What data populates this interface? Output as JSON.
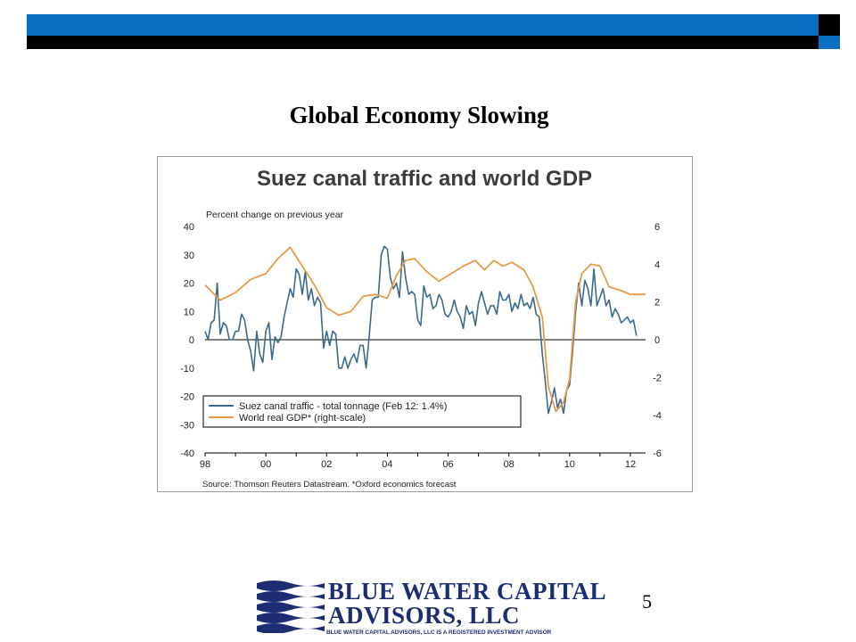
{
  "slide": {
    "title": "Global Economy Slowing",
    "page_number": "5"
  },
  "logo": {
    "line1": "BLUE WATER CAPITAL",
    "line2": "ADVISORS, LLC",
    "tagline": "BLUE WATER CAPITAL ADVISORS, LLC IS A REGISTERED INVESTMENT ADVISOR",
    "color": "#1d2d72"
  },
  "colors": {
    "top_bar": "#0b6fc1",
    "traffic_series": "#3d6a8a",
    "gdp_series": "#e89a45"
  },
  "chart_data": {
    "type": "line",
    "title": "Suez canal traffic and world GDP",
    "subtitle": "Percent change on previous year",
    "source": "Source: Thomson Reuters Datastream. *Oxford economics forecast",
    "x_range": [
      98,
      112.5
    ],
    "x_ticks": [
      {
        "value": 98,
        "label": "98"
      },
      {
        "value": 100,
        "label": "00"
      },
      {
        "value": 102,
        "label": "02"
      },
      {
        "value": 104,
        "label": "04"
      },
      {
        "value": 106,
        "label": "06"
      },
      {
        "value": 108,
        "label": "08"
      },
      {
        "value": 110,
        "label": "10"
      },
      {
        "value": 112,
        "label": "12"
      }
    ],
    "y_left": {
      "range": [
        -40,
        40
      ],
      "ticks": [
        "40",
        "30",
        "20",
        "10",
        "0",
        "-10",
        "-20",
        "-30",
        "-40"
      ]
    },
    "y_right": {
      "range": [
        -6,
        6
      ],
      "ticks": [
        "6",
        "4",
        "2",
        "0",
        "-2",
        "-4",
        "-6"
      ]
    },
    "legend_placement": "bottom-left",
    "series": [
      {
        "name": "Suez canal traffic - total tonnage (Feb 12: 1.4%)",
        "axis": "left",
        "points": [
          [
            98.0,
            3
          ],
          [
            98.1,
            0
          ],
          [
            98.2,
            6
          ],
          [
            98.3,
            7
          ],
          [
            98.4,
            20
          ],
          [
            98.5,
            2
          ],
          [
            98.6,
            6
          ],
          [
            98.7,
            5
          ],
          [
            98.8,
            0
          ],
          [
            98.9,
            0
          ],
          [
            99.0,
            3
          ],
          [
            99.1,
            3
          ],
          [
            99.2,
            9
          ],
          [
            99.3,
            7
          ],
          [
            99.4,
            0
          ],
          [
            99.5,
            -4
          ],
          [
            99.6,
            -11
          ],
          [
            99.7,
            3
          ],
          [
            99.8,
            -5
          ],
          [
            99.9,
            -8
          ],
          [
            100.0,
            3
          ],
          [
            100.1,
            6
          ],
          [
            100.2,
            -7
          ],
          [
            100.3,
            1
          ],
          [
            100.4,
            -1
          ],
          [
            100.5,
            1
          ],
          [
            100.6,
            8
          ],
          [
            100.7,
            13
          ],
          [
            100.8,
            18
          ],
          [
            100.9,
            15
          ],
          [
            101.0,
            25
          ],
          [
            101.1,
            23
          ],
          [
            101.2,
            16
          ],
          [
            101.3,
            24
          ],
          [
            101.4,
            14
          ],
          [
            101.5,
            18
          ],
          [
            101.6,
            12
          ],
          [
            101.7,
            15
          ],
          [
            101.8,
            13
          ],
          [
            101.9,
            -3
          ],
          [
            102.0,
            3
          ],
          [
            102.1,
            -2
          ],
          [
            102.2,
            3
          ],
          [
            102.3,
            2
          ],
          [
            102.4,
            -10
          ],
          [
            102.5,
            -10
          ],
          [
            102.6,
            -6
          ],
          [
            102.7,
            -10
          ],
          [
            102.8,
            -7
          ],
          [
            102.9,
            -5
          ],
          [
            103.0,
            -8
          ],
          [
            103.1,
            -2
          ],
          [
            103.2,
            -2
          ],
          [
            103.3,
            -10
          ],
          [
            103.4,
            1
          ],
          [
            103.5,
            14
          ],
          [
            103.6,
            15
          ],
          [
            103.7,
            15
          ],
          [
            103.8,
            30
          ],
          [
            103.9,
            33
          ],
          [
            104.0,
            32
          ],
          [
            104.1,
            22
          ],
          [
            104.2,
            18
          ],
          [
            104.3,
            20
          ],
          [
            104.4,
            15
          ],
          [
            104.5,
            31
          ],
          [
            104.6,
            22
          ],
          [
            104.7,
            16
          ],
          [
            104.8,
            17
          ],
          [
            104.9,
            16
          ],
          [
            105.0,
            7
          ],
          [
            105.1,
            5
          ],
          [
            105.2,
            19
          ],
          [
            105.3,
            15
          ],
          [
            105.4,
            16
          ],
          [
            105.5,
            11
          ],
          [
            105.6,
            12
          ],
          [
            105.7,
            16
          ],
          [
            105.8,
            14
          ],
          [
            105.9,
            9
          ],
          [
            106.0,
            8
          ],
          [
            106.1,
            10
          ],
          [
            106.2,
            14
          ],
          [
            106.3,
            10
          ],
          [
            106.4,
            8
          ],
          [
            106.5,
            4
          ],
          [
            106.6,
            12
          ],
          [
            106.7,
            9
          ],
          [
            106.8,
            10
          ],
          [
            106.9,
            5
          ],
          [
            107.0,
            13
          ],
          [
            107.1,
            17
          ],
          [
            107.2,
            13
          ],
          [
            107.3,
            9
          ],
          [
            107.4,
            12
          ],
          [
            107.5,
            12
          ],
          [
            107.6,
            9
          ],
          [
            107.7,
            17
          ],
          [
            107.8,
            14
          ],
          [
            107.9,
            14
          ],
          [
            108.0,
            16
          ],
          [
            108.1,
            10
          ],
          [
            108.2,
            13
          ],
          [
            108.3,
            11
          ],
          [
            108.4,
            16
          ],
          [
            108.5,
            12
          ],
          [
            108.6,
            13
          ],
          [
            108.7,
            11
          ],
          [
            108.8,
            15
          ],
          [
            108.9,
            9
          ],
          [
            109.0,
            8
          ],
          [
            109.1,
            -5
          ],
          [
            109.2,
            -15
          ],
          [
            109.3,
            -26
          ],
          [
            109.4,
            -22
          ],
          [
            109.5,
            -17
          ],
          [
            109.6,
            -24
          ],
          [
            109.7,
            -21
          ],
          [
            109.8,
            -26
          ],
          [
            109.9,
            -18
          ],
          [
            110.0,
            -16
          ],
          [
            110.1,
            -4
          ],
          [
            110.2,
            10
          ],
          [
            110.3,
            20
          ],
          [
            110.4,
            12
          ],
          [
            110.5,
            21
          ],
          [
            110.6,
            18
          ],
          [
            110.7,
            12
          ],
          [
            110.8,
            25
          ],
          [
            110.9,
            12
          ],
          [
            111.0,
            15
          ],
          [
            111.1,
            18
          ],
          [
            111.2,
            12
          ],
          [
            111.3,
            14
          ],
          [
            111.4,
            8
          ],
          [
            111.5,
            11
          ],
          [
            111.6,
            9
          ],
          [
            111.7,
            6
          ],
          [
            111.8,
            7
          ],
          [
            111.9,
            8
          ],
          [
            112.0,
            6
          ],
          [
            112.1,
            7
          ],
          [
            112.2,
            1.4
          ]
        ]
      },
      {
        "name": "World real GDP* (right-scale)",
        "axis": "right",
        "points": [
          [
            98.0,
            2.9
          ],
          [
            98.5,
            2.1
          ],
          [
            99.0,
            2.5
          ],
          [
            99.5,
            3.2
          ],
          [
            100.0,
            3.5
          ],
          [
            100.4,
            4.3
          ],
          [
            100.8,
            4.9
          ],
          [
            101.2,
            3.9
          ],
          [
            101.6,
            2.9
          ],
          [
            102.0,
            1.7
          ],
          [
            102.4,
            1.3
          ],
          [
            102.8,
            1.5
          ],
          [
            103.2,
            2.3
          ],
          [
            103.6,
            2.4
          ],
          [
            104.0,
            2.2
          ],
          [
            104.3,
            3.4
          ],
          [
            104.6,
            4.2
          ],
          [
            104.9,
            4.3
          ],
          [
            105.3,
            3.6
          ],
          [
            105.7,
            3.1
          ],
          [
            106.1,
            3.5
          ],
          [
            106.5,
            3.9
          ],
          [
            106.9,
            4.2
          ],
          [
            107.2,
            3.7
          ],
          [
            107.5,
            4.2
          ],
          [
            107.8,
            3.9
          ],
          [
            108.1,
            4.1
          ],
          [
            108.5,
            3.7
          ],
          [
            108.8,
            2.8
          ],
          [
            109.1,
            1.2
          ],
          [
            109.3,
            -2.5
          ],
          [
            109.55,
            -3.8
          ],
          [
            109.8,
            -3.3
          ],
          [
            110.0,
            -2.1
          ],
          [
            110.2,
            2.0
          ],
          [
            110.4,
            3.5
          ],
          [
            110.7,
            4.0
          ],
          [
            111.0,
            3.9
          ],
          [
            111.3,
            2.8
          ],
          [
            111.7,
            2.6
          ],
          [
            112.0,
            2.4
          ],
          [
            112.2,
            2.4
          ],
          [
            112.5,
            2.4
          ]
        ]
      }
    ]
  }
}
